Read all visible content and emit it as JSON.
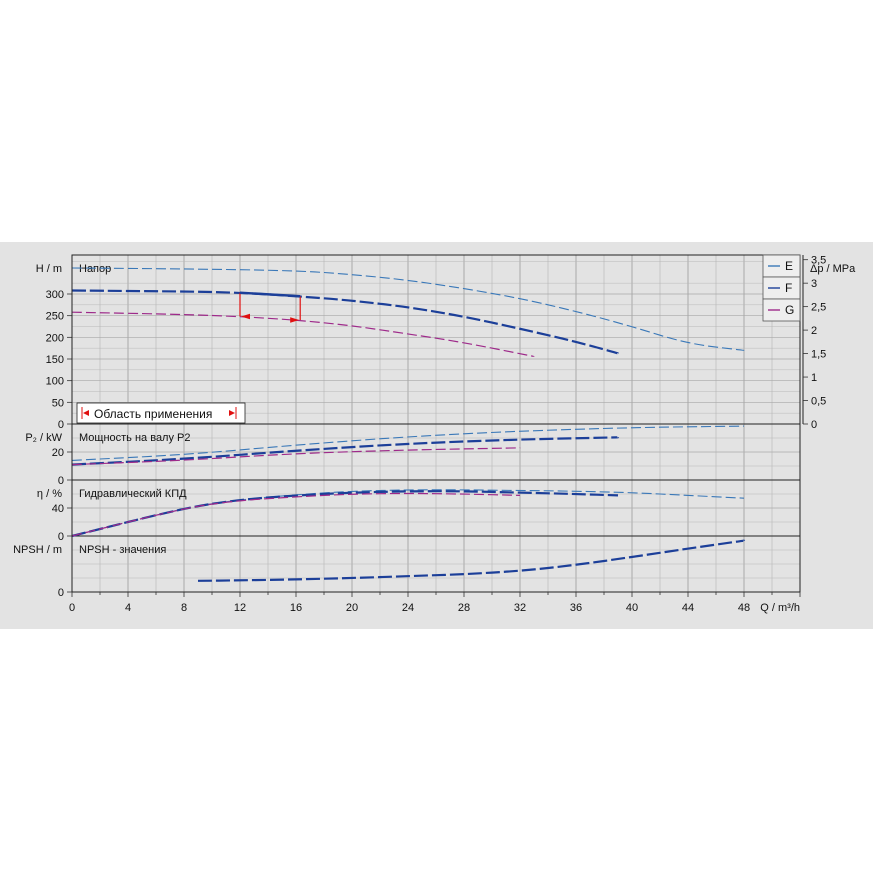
{
  "chart_data": {
    "type": "line",
    "xlabel_symbol": "Q",
    "xlabel_unit": "m³/h",
    "xlim": [
      0,
      52
    ],
    "x_ticks": [
      "0",
      "4",
      "8",
      "12",
      "16",
      "20",
      "24",
      "28",
      "32",
      "36",
      "40",
      "44",
      "48"
    ],
    "legend": [
      {
        "label": "E",
        "color": "#3a78b8"
      },
      {
        "label": "F",
        "color": "#1c3f99"
      },
      {
        "label": "G",
        "color": "#9e2a8a"
      }
    ],
    "application_range_label": "Область применения",
    "application_range_q": [
      12,
      16.3
    ],
    "panels": [
      {
        "name": "head",
        "title": "Напор",
        "ylabel_symbol": "H",
        "ylabel_unit": "m",
        "ylim": [
          0,
          390
        ],
        "y_ticks": [
          "0",
          "50",
          "100",
          "150",
          "200",
          "250",
          "300"
        ],
        "right_axis": {
          "label_symbol": "Δp",
          "label_unit": "MPa",
          "ticks": [
            "0",
            "0,5",
            "1",
            "1,5",
            "2",
            "2,5",
            "3",
            "3,5"
          ]
        },
        "series": [
          {
            "name": "E",
            "x": [
              0,
              8,
              16,
              20,
              24,
              28,
              32,
              36,
              40,
              44,
              48
            ],
            "y": [
              360,
              358,
              354,
              345,
              332,
              313,
              290,
              260,
              225,
              185,
              170
            ]
          },
          {
            "name": "F",
            "x": [
              0,
              8,
              12,
              16,
              20,
              24,
              28,
              32,
              36,
              39
            ],
            "y": [
              308,
              306,
              303,
              295,
              285,
              270,
              248,
              220,
              190,
              163
            ]
          },
          {
            "name": "G",
            "x": [
              0,
              8,
              12,
              16,
              20,
              24,
              28,
              33
            ],
            "y": [
              258,
              253,
              248,
              240,
              227,
              208,
              188,
              156
            ]
          }
        ]
      },
      {
        "name": "power",
        "title": "Мощность на валу P2",
        "ylabel_symbol": "P₂",
        "ylabel_unit": "kW",
        "ylim": [
          0,
          40
        ],
        "y_ticks": [
          "0",
          "20"
        ],
        "series": [
          {
            "name": "E",
            "x": [
              0,
              8,
              16,
              24,
              32,
              40,
              48
            ],
            "y": [
              14,
              18,
              25,
              31,
              35,
              37.5,
              38.5
            ]
          },
          {
            "name": "F",
            "x": [
              0,
              8,
              16,
              24,
              32,
              39
            ],
            "y": [
              11,
              15,
              21,
              26,
              29,
              30.5
            ]
          },
          {
            "name": "G",
            "x": [
              0,
              8,
              16,
              24,
              32
            ],
            "y": [
              11,
              14,
              19,
              21.5,
              23
            ]
          }
        ]
      },
      {
        "name": "efficiency",
        "title": "Гидравлический КПД",
        "ylabel_symbol": "η",
        "ylabel_unit": "%",
        "ylim": [
          0,
          80
        ],
        "y_ticks": [
          "0",
          "40"
        ],
        "series": [
          {
            "name": "E",
            "x": [
              0,
              8,
              12,
              16,
              20,
              24,
              28,
              32,
              36,
              40,
              44,
              48
            ],
            "y": [
              0,
              40,
              52,
              59,
              64,
              66,
              66,
              65,
              64,
              62,
              58,
              54
            ]
          },
          {
            "name": "F",
            "x": [
              0,
              8,
              12,
              16,
              20,
              24,
              28,
              32,
              36,
              39
            ],
            "y": [
              0,
              40,
              52,
              58,
              62,
              64,
              64,
              62,
              60,
              58
            ]
          },
          {
            "name": "G",
            "x": [
              0,
              8,
              12,
              16,
              20,
              24,
              28,
              32
            ],
            "y": [
              0,
              40,
              51,
              56,
              60,
              61,
              60,
              58
            ]
          }
        ]
      },
      {
        "name": "npsh",
        "title": "NPSH - значения",
        "ylabel_symbol": "NPSH",
        "ylabel_unit": "m",
        "ylim": [
          0,
          12
        ],
        "y_ticks": [
          "0"
        ],
        "series": [
          {
            "name": "F",
            "x": [
              9,
              12,
              16,
              20,
              24,
              28,
              32,
              36,
              40,
              44,
              48
            ],
            "y": [
              2.4,
              2.5,
              2.7,
              3.0,
              3.4,
              3.8,
              4.5,
              5.8,
              7.5,
              9.3,
              11
            ]
          }
        ]
      }
    ]
  }
}
